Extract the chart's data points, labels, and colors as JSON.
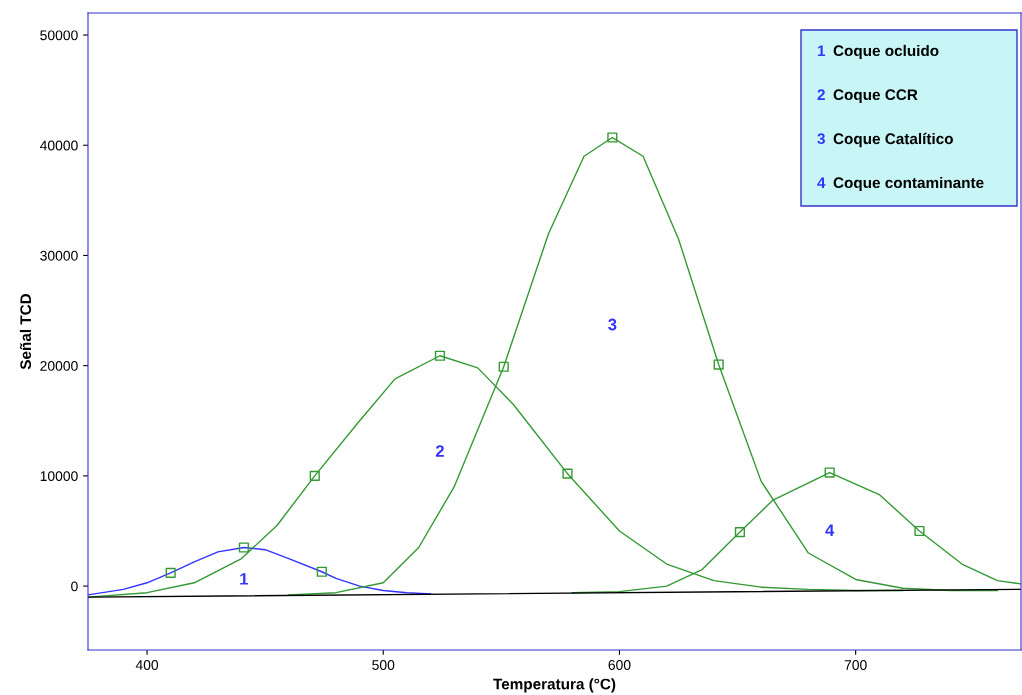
{
  "chart_data": {
    "type": "line",
    "xlabel": "Temperatura (°C)",
    "ylabel": "Señal TCD",
    "xlim": [
      375,
      770
    ],
    "ylim": [
      -5800,
      52000
    ],
    "xticks": [
      400,
      500,
      600,
      700
    ],
    "yticks": [
      0,
      10000,
      20000,
      30000,
      40000,
      50000
    ],
    "grid": false,
    "legend": false,
    "series": [
      {
        "color": "#3333ff",
        "marker": "none",
        "x": [
          375,
          390,
          400,
          410,
          420,
          430,
          441,
          450,
          460,
          474,
          480,
          490,
          500,
          510,
          520
        ],
        "values": [
          -800,
          -300,
          300,
          1200,
          2200,
          3100,
          3500,
          3300,
          2500,
          1300,
          700,
          0,
          -400,
          -600,
          -700
        ]
      },
      {
        "color": "#339933",
        "marker": "none",
        "x": [
          375,
          400,
          420,
          440,
          455,
          471,
          490,
          505,
          524,
          540,
          555,
          578,
          600,
          620,
          640,
          660,
          680,
          700,
          720
        ],
        "values": [
          -1000,
          -600,
          300,
          2500,
          5500,
          10000,
          15000,
          18800,
          20900,
          19800,
          16500,
          10200,
          5000,
          2000,
          500,
          -100,
          -300,
          -400,
          -400
        ]
      },
      {
        "color": "#339933",
        "marker": "none",
        "x": [
          460,
          480,
          500,
          515,
          530,
          551,
          570,
          585,
          597,
          610,
          625,
          642,
          660,
          680,
          700,
          720,
          740,
          760
        ],
        "values": [
          -800,
          -600,
          300,
          3500,
          9000,
          19900,
          32000,
          39000,
          40700,
          39000,
          31500,
          20100,
          9500,
          3000,
          600,
          -200,
          -400,
          -400
        ]
      },
      {
        "color": "#339933",
        "marker": "none",
        "x": [
          580,
          600,
          620,
          635,
          651,
          665,
          689,
          710,
          727,
          745,
          760,
          770
        ],
        "values": [
          -600,
          -500,
          0,
          1500,
          4900,
          7800,
          10300,
          8300,
          5000,
          2000,
          500,
          200
        ]
      },
      {
        "color": "#000000",
        "marker": "none",
        "x": [
          375,
          770
        ],
        "values": [
          -1000,
          -300
        ]
      },
      {
        "type": "scatter",
        "color": "#339933",
        "marker": "square",
        "x": [
          410,
          441,
          474,
          471,
          524,
          578,
          551,
          597,
          642,
          651,
          689,
          727
        ],
        "values": [
          1200,
          3500,
          1300,
          10000,
          20900,
          10200,
          19900,
          40700,
          20100,
          4900,
          10300,
          5000
        ]
      }
    ],
    "annotations": [
      "1",
      "2",
      "3",
      "4",
      "1 Coque ocluido",
      "2 Coque CCR",
      "3 Coque Catalítico",
      "4 Coque contaminante"
    ]
  }
}
